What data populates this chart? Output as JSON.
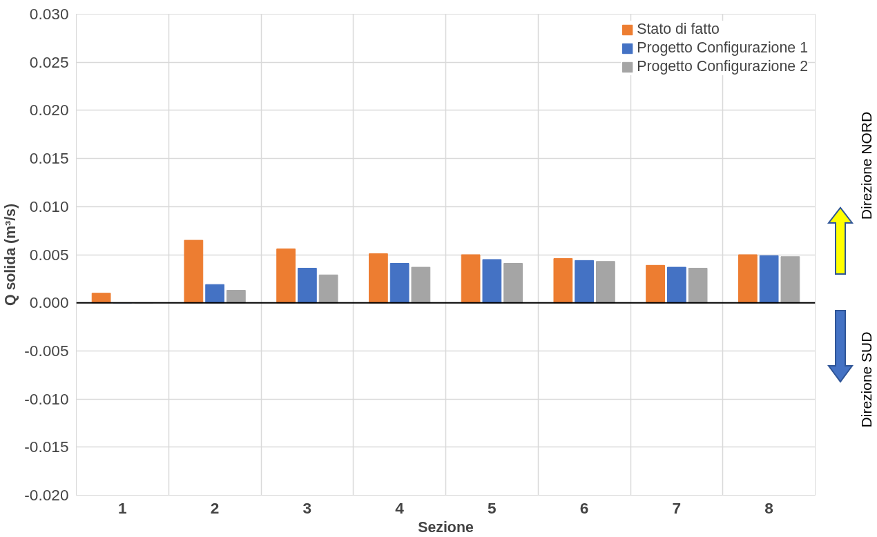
{
  "chart_data": {
    "type": "bar",
    "xlabel": "Sezione",
    "ylabel": "Q solida (m³/s)",
    "categories": [
      "1",
      "2",
      "3",
      "4",
      "5",
      "6",
      "7",
      "8"
    ],
    "series": [
      {
        "name": "Stato di fatto",
        "color": "#ed7d31",
        "values": [
          0.001,
          0.0065,
          0.0056,
          0.0051,
          0.005,
          0.0046,
          0.0039,
          0.005
        ]
      },
      {
        "name": "Progetto Configurazione 1",
        "color": "#4472c4",
        "values": [
          0.0,
          0.0019,
          0.0036,
          0.0041,
          0.0045,
          0.0044,
          0.0037,
          0.0049
        ]
      },
      {
        "name": "Progetto Configurazione 2",
        "color": "#a5a5a5",
        "values": [
          0.0,
          0.0013,
          0.0029,
          0.0037,
          0.0041,
          0.0043,
          0.0036,
          0.0048
        ]
      }
    ],
    "ylim": [
      -0.02,
      0.03
    ],
    "yticks": [
      {
        "value": -0.02,
        "label": "-0.020"
      },
      {
        "value": -0.015,
        "label": "-0.015"
      },
      {
        "value": -0.01,
        "label": "-0.010"
      },
      {
        "value": -0.005,
        "label": "-0.005"
      },
      {
        "value": 0,
        "label": "0.000"
      },
      {
        "value": 0.005,
        "label": "0.005"
      },
      {
        "value": 0.01,
        "label": "0.010"
      },
      {
        "value": 0.015,
        "label": "0.015"
      },
      {
        "value": 0.02,
        "label": "0.020"
      },
      {
        "value": 0.025,
        "label": "0.025"
      },
      {
        "value": 0.03,
        "label": "0.030"
      }
    ],
    "ref_lines": [
      {
        "axis": "y",
        "value": 0,
        "color": "#000000"
      }
    ],
    "annotations": [
      "Direzione NORD",
      "Direzione SUD"
    ],
    "grid": true,
    "legend": "top right"
  }
}
